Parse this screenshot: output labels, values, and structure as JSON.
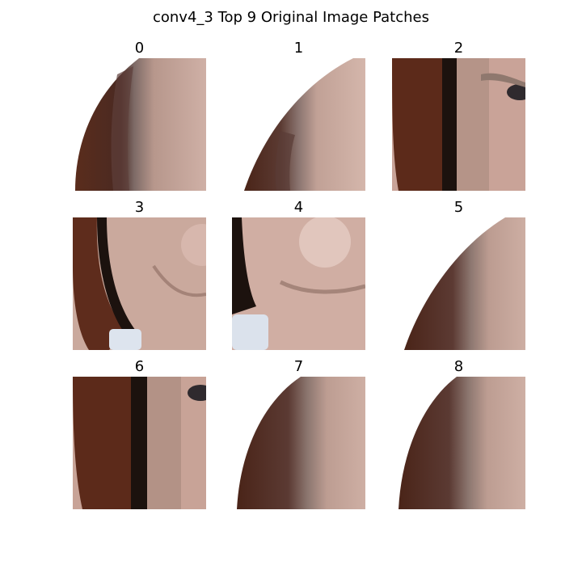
{
  "figure": {
    "title": "conv4_3 Top 9 Original Image Patches"
  },
  "patches": [
    {
      "label": "0"
    },
    {
      "label": "1"
    },
    {
      "label": "2"
    },
    {
      "label": "3"
    },
    {
      "label": "4"
    },
    {
      "label": "5"
    },
    {
      "label": "6"
    },
    {
      "label": "7"
    },
    {
      "label": "8"
    }
  ],
  "colors": {
    "background": "#ffffff",
    "hair_dark": "#4a2418",
    "hair_mid": "#6b3422",
    "edge_dark": "#1c120e",
    "skin": "#c9a79b",
    "skin_light": "#dcc0b6",
    "skin_shadow": "#9e8278",
    "collar": "#dde4ee"
  }
}
